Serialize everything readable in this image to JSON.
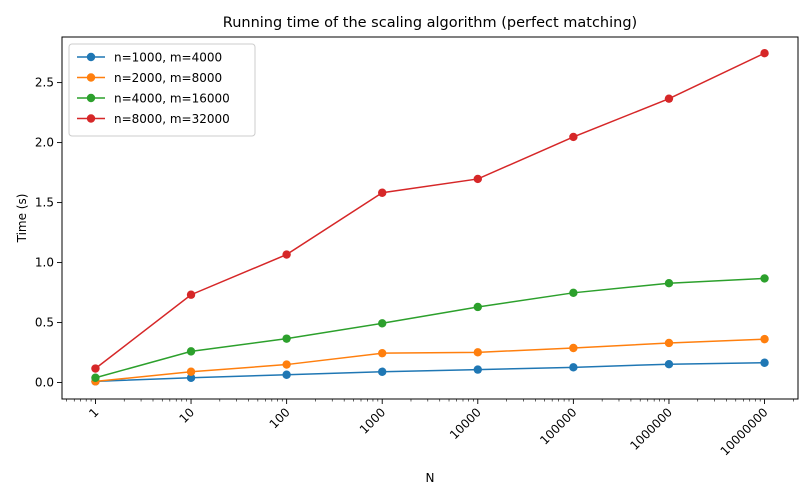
{
  "chart_data": {
    "type": "line",
    "title": "Running time of the scaling algorithm (perfect matching)",
    "xlabel": "N",
    "ylabel": "Time (s)",
    "xscale": "log",
    "x": [
      1,
      10,
      100,
      1000,
      10000,
      100000,
      1000000,
      10000000
    ],
    "x_tick_labels": [
      "1",
      "10",
      "100",
      "1000",
      "10000",
      "100000",
      "1000000",
      "10000000"
    ],
    "x_tick_rotation": 45,
    "ylim": [
      -0.137,
      2.88
    ],
    "y_ticks": [
      0.0,
      0.5,
      1.0,
      1.5,
      2.0,
      2.5
    ],
    "y_tick_labels": [
      "0.0",
      "0.5",
      "1.0",
      "1.5",
      "2.0",
      "2.5"
    ],
    "grid": false,
    "legend_position": "top-left",
    "marker": "circle",
    "series": [
      {
        "name": "n=1000, m=4000",
        "color": "#1f77b4",
        "values": [
          0.01,
          0.04,
          0.065,
          0.09,
          0.108,
          0.127,
          0.153,
          0.165
        ]
      },
      {
        "name": "n=2000, m=8000",
        "color": "#ff7f0e",
        "values": [
          0.01,
          0.09,
          0.15,
          0.245,
          0.252,
          0.288,
          0.33,
          0.362
        ]
      },
      {
        "name": "n=4000, m=16000",
        "color": "#2ca02c",
        "values": [
          0.04,
          0.26,
          0.366,
          0.494,
          0.63,
          0.748,
          0.828,
          0.868
        ]
      },
      {
        "name": "n=8000, m=32000",
        "color": "#d62728",
        "values": [
          0.117,
          0.732,
          1.067,
          1.582,
          1.697,
          2.047,
          2.366,
          2.745
        ]
      }
    ]
  }
}
